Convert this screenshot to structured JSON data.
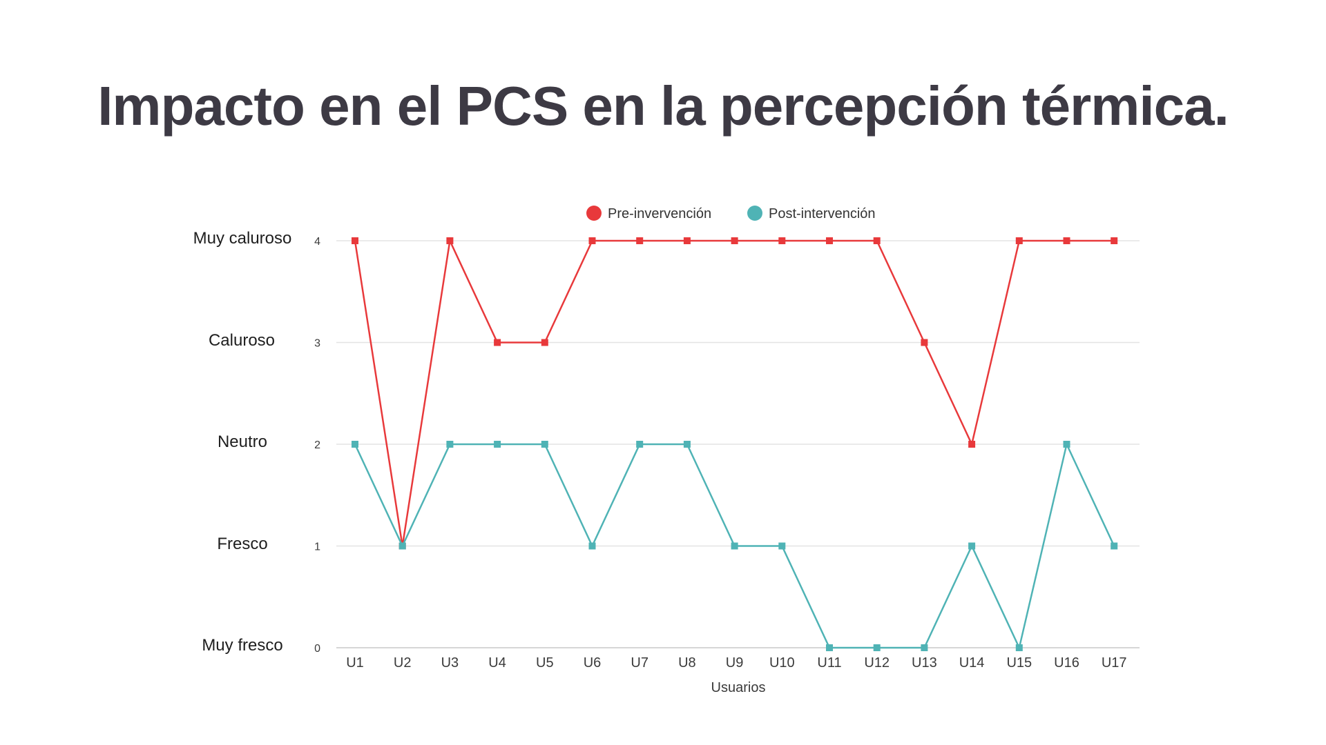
{
  "page": {
    "title": "Impacto en el PCS en la percepción térmica."
  },
  "y_category_labels": [
    "Muy caluroso",
    "Caluroso",
    "Neutro",
    "Fresco",
    "Muy fresco"
  ],
  "colors": {
    "pre": "#e8393b",
    "post": "#4fb3b5",
    "grid": "#e3e3e3",
    "axis_text": "#3a3a3a",
    "title": "#3d3a44"
  },
  "chart_data": {
    "type": "line",
    "x": [
      "U1",
      "U2",
      "U3",
      "U4",
      "U5",
      "U6",
      "U7",
      "U8",
      "U9",
      "U10",
      "U11",
      "U12",
      "U13",
      "U14",
      "U15",
      "U16",
      "U17"
    ],
    "series": [
      {
        "name": "Pre-invervención",
        "color": "#e8393b",
        "values": [
          4,
          1,
          4,
          3,
          3,
          4,
          4,
          4,
          4,
          4,
          4,
          4,
          3,
          2,
          4,
          4,
          4
        ]
      },
      {
        "name": "Post-intervención",
        "color": "#4fb3b5",
        "values": [
          2,
          1,
          2,
          2,
          2,
          1,
          2,
          2,
          1,
          1,
          0,
          0,
          0,
          1,
          0,
          2,
          1
        ]
      }
    ],
    "yticks": [
      0,
      1,
      2,
      3,
      4
    ],
    "ylim": [
      0,
      4
    ],
    "xlabel": "Usuarios",
    "ylabel": "",
    "grid": true,
    "legend_position": "top-center"
  }
}
